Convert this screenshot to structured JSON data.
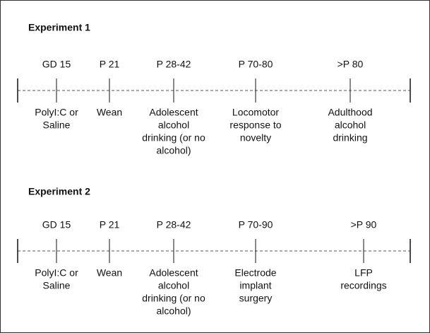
{
  "experiments": [
    {
      "title": "Experiment 1",
      "events": [
        {
          "time": "GD 15",
          "description": [
            "PolyI:C or",
            "Saline"
          ]
        },
        {
          "time": "P 21",
          "description": [
            "Wean"
          ]
        },
        {
          "time": "P 28-42",
          "description": [
            "Adolescent",
            "alcohol",
            "drinking (or no",
            "alcohol)"
          ]
        },
        {
          "time": "P 70-80",
          "description": [
            "Locomotor",
            "response to",
            "novelty"
          ]
        },
        {
          "time": ">P 80",
          "description": [
            "Adulthood",
            "alcohol",
            "drinking"
          ]
        }
      ]
    },
    {
      "title": "Experiment 2",
      "events": [
        {
          "time": "GD 15",
          "description": [
            "PolyI:C or",
            "Saline"
          ]
        },
        {
          "time": "P 21",
          "description": [
            "Wean"
          ]
        },
        {
          "time": "P 28-42",
          "description": [
            "Adolescent",
            "alcohol",
            "drinking (or no",
            "alcohol)"
          ]
        },
        {
          "time": "P 70-90",
          "description": [
            "Electrode",
            "implant",
            "surgery"
          ]
        },
        {
          "time": ">P 90",
          "description": [
            "LFP",
            "recordings"
          ]
        }
      ]
    }
  ]
}
